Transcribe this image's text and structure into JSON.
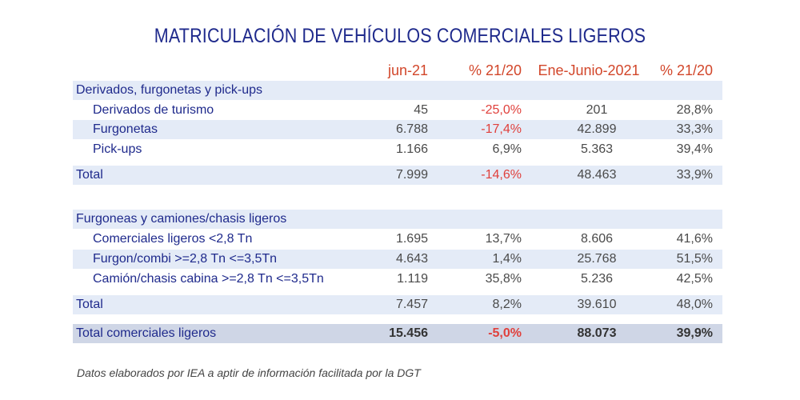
{
  "title": "MATRICULACIÓN DE VEHÍCULOS COMERCIALES LIGEROS",
  "columns": [
    "jun-21",
    "% 21/20",
    "Ene-Junio-2021",
    "% 21/20"
  ],
  "section1": {
    "header": "Derivados, furgonetas y pick-ups",
    "rows": [
      {
        "label": "Derivados de turismo",
        "v1": "45",
        "v2": "-25,0%",
        "v3": "201",
        "v4": "28,8%"
      },
      {
        "label": "Furgonetas",
        "v1": "6.788",
        "v2": "-17,4%",
        "v3": "42.899",
        "v4": "33,3%"
      },
      {
        "label": "Pick-ups",
        "v1": "1.166",
        "v2": "6,9%",
        "v3": "5.363",
        "v4": "39,4%"
      }
    ],
    "total": {
      "label": "Total",
      "v1": "7.999",
      "v2": "-14,6%",
      "v3": "48.463",
      "v4": "33,9%"
    }
  },
  "section2": {
    "header": "Furgoneas y camiones/chasis ligeros",
    "rows": [
      {
        "label": "Comerciales ligeros <2,8 Tn",
        "v1": "1.695",
        "v2": "13,7%",
        "v3": "8.606",
        "v4": "41,6%"
      },
      {
        "label": "Furgon/combi >=2,8 Tn <=3,5Tn",
        "v1": "4.643",
        "v2": "1,4%",
        "v3": "25.768",
        "v4": "51,5%"
      },
      {
        "label": "Camión/chasis cabina >=2,8 Tn <=3,5Tn",
        "v1": "1.119",
        "v2": "35,8%",
        "v3": "5.236",
        "v4": "42,5%"
      }
    ],
    "total": {
      "label": "Total",
      "v1": "7.457",
      "v2": "8,2%",
      "v3": "39.610",
      "v4": "48,0%"
    }
  },
  "grand_total": {
    "label": "Total comerciales ligeros",
    "v1": "15.456",
    "v2": "-5,0%",
    "v3": "88.073",
    "v4": "39,9%"
  },
  "footnote": "Datos elaborados por  IEA a aptir de información facilitada por la DGT",
  "colors": {
    "title": "#1f2a8c",
    "header": "#d2462a",
    "negative": "#e0403c",
    "band": "#e4ebf7",
    "grand_band": "#cfd6e6"
  },
  "chart_data": {
    "type": "table",
    "title": "MATRICULACIÓN DE VEHÍCULOS COMERCIALES LIGEROS",
    "columns": [
      "",
      "jun-21",
      "% 21/20",
      "Ene-Junio-2021",
      "% 21/20"
    ],
    "rows": [
      [
        "Derivados, furgonetas y pick-ups",
        "",
        "",
        "",
        ""
      ],
      [
        "Derivados de turismo",
        "45",
        "-25,0%",
        "201",
        "28,8%"
      ],
      [
        "Furgonetas",
        "6.788",
        "-17,4%",
        "42.899",
        "33,3%"
      ],
      [
        "Pick-ups",
        "1.166",
        "6,9%",
        "5.363",
        "39,4%"
      ],
      [
        "Total",
        "7.999",
        "-14,6%",
        "48.463",
        "33,9%"
      ],
      [
        "Furgoneas y camiones/chasis ligeros",
        "",
        "",
        "",
        ""
      ],
      [
        "Comerciales ligeros <2,8 Tn",
        "1.695",
        "13,7%",
        "8.606",
        "41,6%"
      ],
      [
        "Furgon/combi >=2,8 Tn <=3,5Tn",
        "4.643",
        "1,4%",
        "25.768",
        "51,5%"
      ],
      [
        "Camión/chasis cabina >=2,8 Tn <=3,5Tn",
        "1.119",
        "35,8%",
        "5.236",
        "42,5%"
      ],
      [
        "Total",
        "7.457",
        "8,2%",
        "39.610",
        "48,0%"
      ],
      [
        "Total comerciales ligeros",
        "15.456",
        "-5,0%",
        "88.073",
        "39,9%"
      ]
    ]
  }
}
